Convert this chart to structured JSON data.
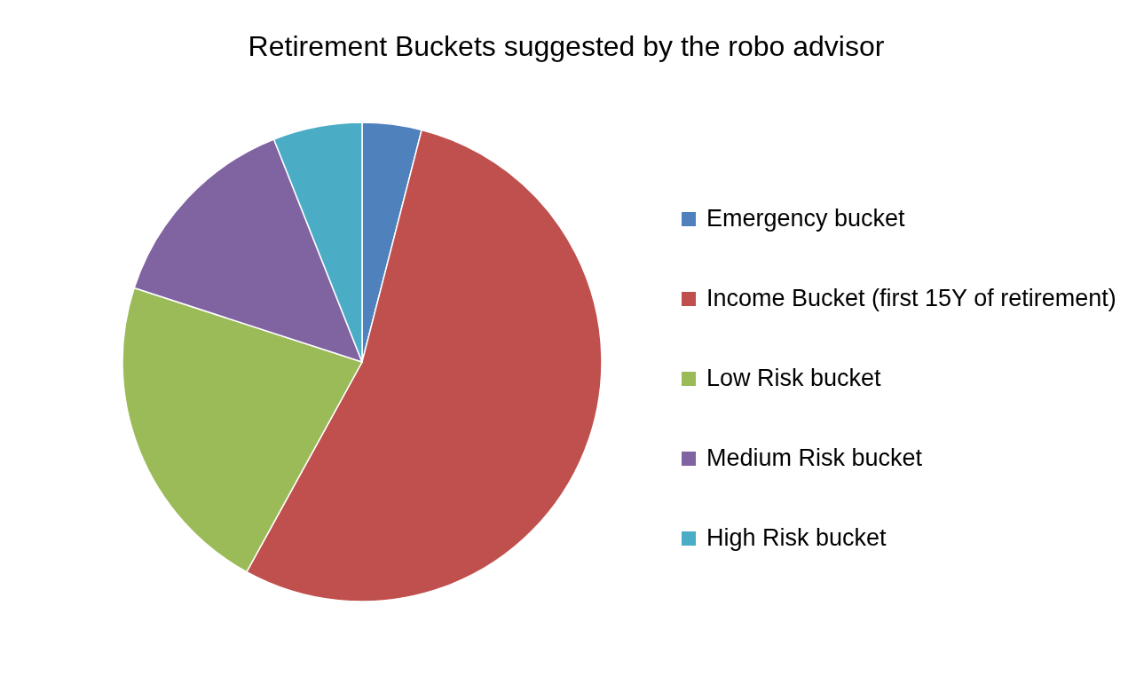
{
  "chart_data": {
    "type": "pie",
    "title": "Retirement Buckets suggested by the robo advisor",
    "categories": [
      "Emergency bucket",
      "Income Bucket (first 15Y of retirement)",
      "Low Risk bucket",
      "Medium Risk bucket",
      "High Risk bucket"
    ],
    "values": [
      4,
      54,
      22,
      14,
      6
    ],
    "colors": [
      "#4f81bd",
      "#c0504d",
      "#9bbb59",
      "#8064a2",
      "#4bacc6"
    ],
    "legend": "right"
  }
}
